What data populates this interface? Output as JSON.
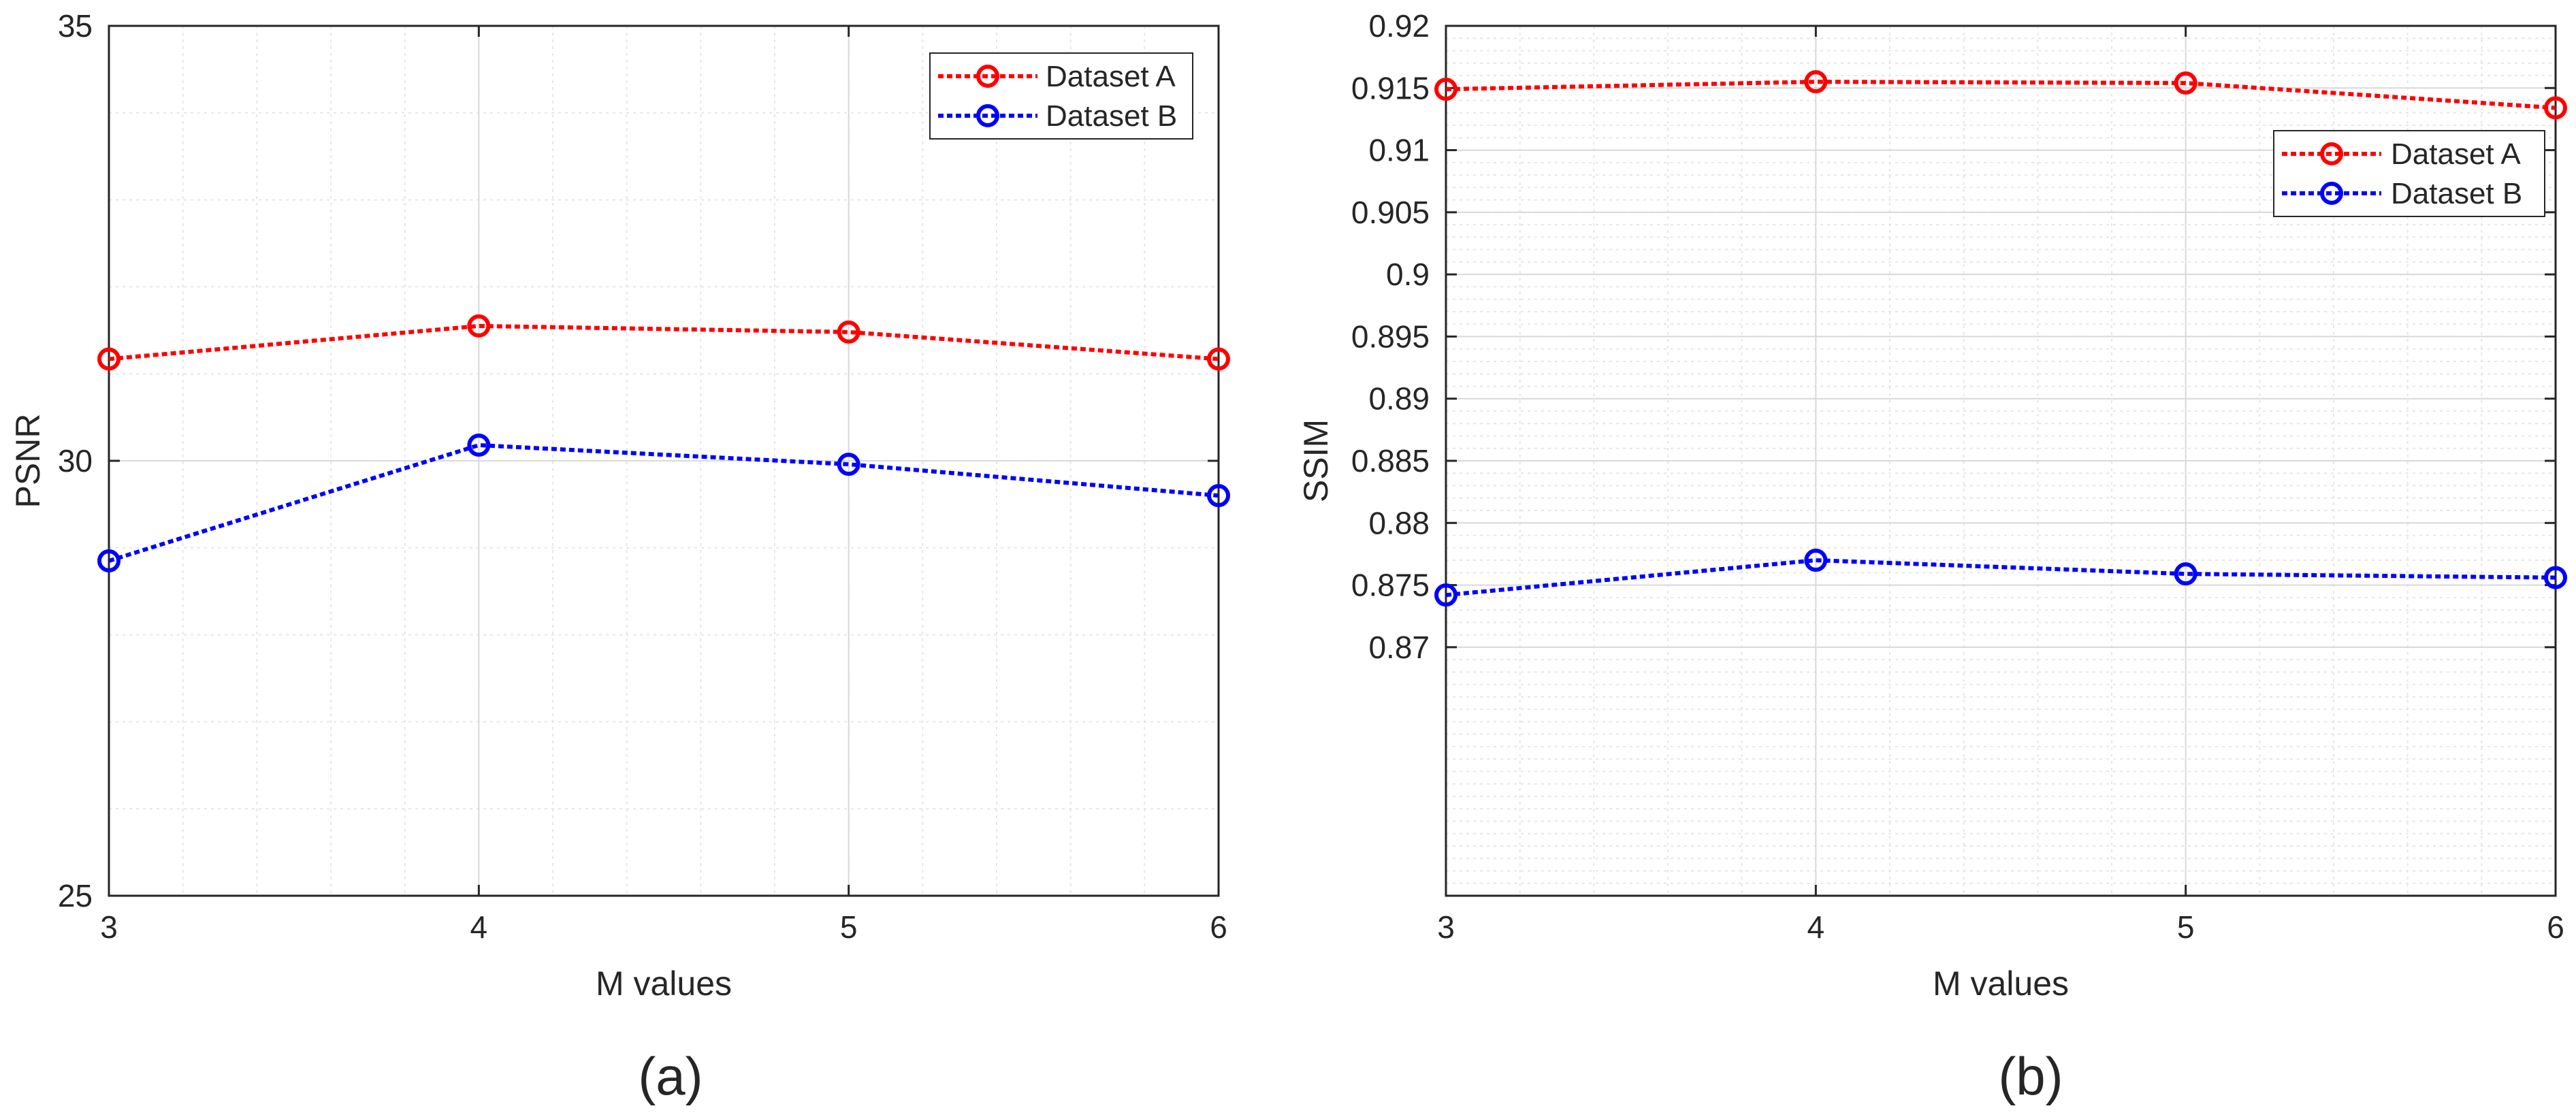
{
  "figure": {
    "panels": [
      "(a)",
      "(b)"
    ]
  },
  "chart_data": [
    {
      "type": "line",
      "title": "",
      "xlabel": "M values",
      "ylabel": "PSNR",
      "x": [
        3,
        4,
        5,
        6
      ],
      "xticks": [
        "3",
        "4",
        "5",
        "6"
      ],
      "xlim": [
        3,
        6
      ],
      "ylim": [
        25,
        35
      ],
      "yticks": [
        "25",
        "30",
        "35"
      ],
      "y_ticks_values": [
        25,
        30,
        35
      ],
      "grid": true,
      "minor_grid": true,
      "legend_position": "top-right",
      "series": [
        {
          "name": "Dataset A",
          "values": [
            31.17,
            31.55,
            31.48,
            31.17
          ],
          "color": "#ff0000",
          "line": "dotted",
          "marker": "circle"
        },
        {
          "name": "Dataset B",
          "values": [
            28.85,
            30.18,
            29.96,
            29.6
          ],
          "color": "#0000ff",
          "line": "dotted",
          "marker": "circle"
        }
      ]
    },
    {
      "type": "line",
      "title": "",
      "xlabel": "M values",
      "ylabel": "SSIM",
      "x": [
        3,
        4,
        5,
        6
      ],
      "xticks": [
        "3",
        "4",
        "5",
        "6"
      ],
      "xlim": [
        3,
        6
      ],
      "ylim": [
        0.85,
        0.92
      ],
      "yticks": [
        "0.87",
        "0.875",
        "0.88",
        "0.885",
        "0.89",
        "0.895",
        "0.9",
        "0.905",
        "0.91",
        "0.915",
        "0.92"
      ],
      "y_ticks_values": [
        0.87,
        0.875,
        0.88,
        0.885,
        0.89,
        0.895,
        0.9,
        0.905,
        0.91,
        0.915,
        0.92
      ],
      "grid": true,
      "minor_grid": true,
      "legend_position": "upper-right",
      "series": [
        {
          "name": "Dataset A",
          "values": [
            0.9149,
            0.9155,
            0.9154,
            0.9134
          ],
          "color": "#ff0000",
          "line": "dotted",
          "marker": "circle"
        },
        {
          "name": "Dataset B",
          "values": [
            0.8742,
            0.877,
            0.8759,
            0.8756
          ],
          "color": "#0000ff",
          "line": "dotted",
          "marker": "circle"
        }
      ]
    }
  ]
}
